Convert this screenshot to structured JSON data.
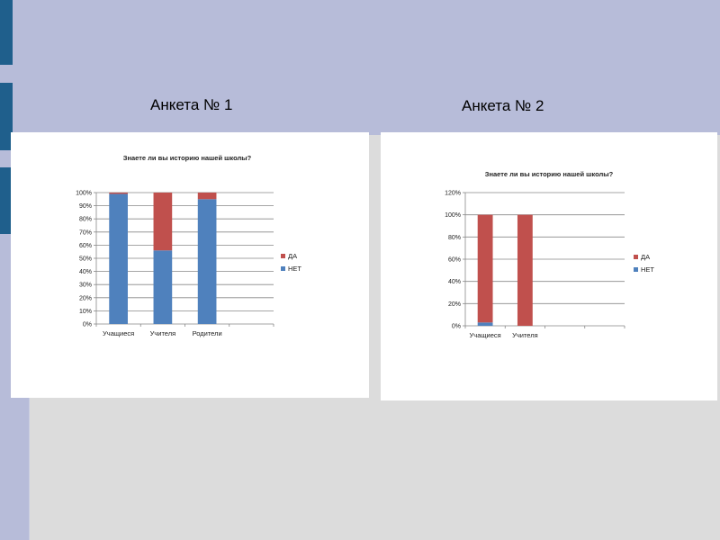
{
  "slide": {
    "label_left": "Анкета № 1",
    "label_right": "Анкета № 2"
  },
  "colors": {
    "da": "#c0504d",
    "net": "#4f81bd",
    "grid": "#888888"
  },
  "chart_data": [
    {
      "type": "bar",
      "stacked": true,
      "title": "Знаете ли вы историю нашей школы?",
      "categories": [
        "Учащиеся",
        "Учителя",
        "Родители"
      ],
      "extra_empty_slots": 1,
      "series": [
        {
          "name": "ДА",
          "values": [
            1,
            44,
            5
          ]
        },
        {
          "name": "НЕТ",
          "values": [
            99,
            56,
            95
          ]
        }
      ],
      "ylim": [
        0,
        100
      ],
      "yticks": [
        0,
        10,
        20,
        30,
        40,
        50,
        60,
        70,
        80,
        90,
        100
      ],
      "ytick_labels": [
        "0%",
        "10%",
        "20%",
        "30%",
        "40%",
        "50%",
        "60%",
        "70%",
        "80%",
        "90%",
        "100%"
      ],
      "grid": true,
      "legend": "right"
    },
    {
      "type": "bar",
      "stacked": true,
      "title": "Знаете ли вы историю нашей школы?",
      "categories": [
        "Учащиеся",
        "Учителя"
      ],
      "extra_empty_slots": 2,
      "series": [
        {
          "name": "ДА",
          "values": [
            97,
            100
          ]
        },
        {
          "name": "НЕТ",
          "values": [
            3,
            0
          ]
        }
      ],
      "ylim": [
        0,
        120
      ],
      "yticks": [
        0,
        20,
        40,
        60,
        80,
        100,
        120
      ],
      "ytick_labels": [
        "0%",
        "20%",
        "40%",
        "60%",
        "80%",
        "100%",
        "120%"
      ],
      "grid": true,
      "legend": "right"
    }
  ]
}
